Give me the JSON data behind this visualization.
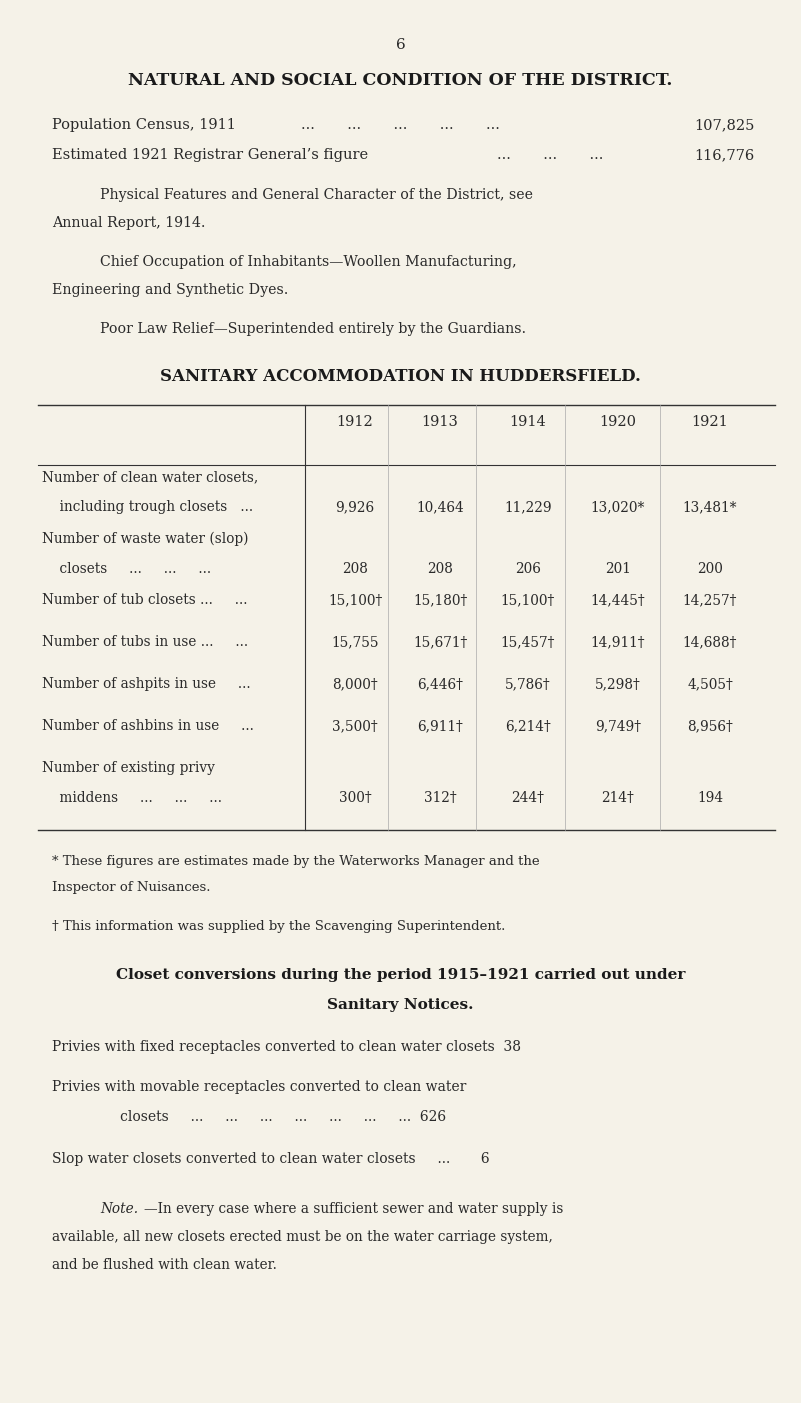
{
  "bg_color": "#f5f2e8",
  "page_number": "6",
  "main_title": "NATURAL AND SOCIAL CONDITION OF THE DISTRICT.",
  "pop_line1": "Population Census, 1911          ...       ...       ...       ...       ... 107,825",
  "pop_line2": "Estimated 1921 Registrar General’s figure     ...       ...       ... 116,776",
  "para1": "Physical Features and General Character of the District, see Annual Report, 1914.",
  "para2": "Chief Occupation of Inhabitants—Woollen Manufacturing, Engineering and Synthetic Dyes.",
  "para3": "Poor Law Relief—Superintended entirely by the Guardians.",
  "table_title": "SANITARY ACCOMMODATION IN HUDDERSFIELD.",
  "col_years": [
    "1912",
    "1913",
    "1914",
    "1920",
    "1921"
  ],
  "row_labels": [
    [
      "Number of clean water closets,",
      "including trough closets   ..."
    ],
    [
      "Number of waste water (slop)",
      "closets      ...      ...      ..."
    ],
    [
      "Number of tub closets ...      ..."
    ],
    [
      "Number of tubs in use ...      ..."
    ],
    [
      "Number of ashpits in use      ..."
    ],
    [
      "Number of ashbins in use      ..."
    ],
    [
      "Number of existing privy",
      "middens      ...      ...      ..."
    ]
  ],
  "table_data": [
    [
      "9,926",
      "10,464",
      "11,229",
      "13,020*",
      "13,481*"
    ],
    [
      "208",
      "208",
      "206",
      "201",
      "200"
    ],
    [
      "15,100†",
      "15,180†",
      "15,100†",
      "14,445†",
      "14,257†"
    ],
    [
      "15,755",
      "15,671†",
      "15,457†",
      "14,911†",
      "14,688†"
    ],
    [
      "8,000†",
      "6,446†",
      "5,786†",
      "5,298†",
      "4,505†"
    ],
    [
      "3,500†",
      "6,911†",
      "6,214†",
      "9,749†",
      "8,956†"
    ],
    [
      "300†",
      "312†",
      "244†",
      "214†",
      "194"
    ]
  ],
  "footnote1": "* These figures are estimates made by the Waterworks Manager and the Inspector of Nuisances.",
  "footnote2": "† This information was supplied by the Scavenging Superintendent.",
  "closet_title_line1": "Closet conversions during the period 1915–1921 carried out under",
  "closet_title_line2": "Sanitary Notices.",
  "closet_line1": "Privies with fixed receptacles converted to clean water closets  38",
  "closet_line2_a": "Privies with movable receptacles converted to clean water",
  "closet_line2_b": "closets     ...     ...     ...     ...     ...     ...     ...  626",
  "closet_line3": "Slop water closets converted to clean water closets      ...       6",
  "note_label": "Note.",
  "note_text": "—In every case where a sufficient sewer and water supply is available, all new closets erected must be on the water carriage system, and be flushed with clean water."
}
